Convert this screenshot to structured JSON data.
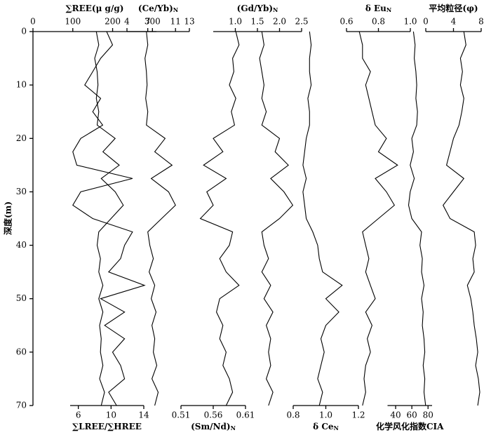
{
  "chart_data": {
    "type": "line",
    "ylabel": "深度(m)",
    "ylim": [
      0,
      70
    ],
    "yticks": [
      0,
      10,
      20,
      30,
      40,
      50,
      60,
      70
    ],
    "depth": [
      0,
      2.5,
      5,
      7.5,
      10,
      12.5,
      15,
      17.5,
      20,
      22.5,
      25,
      27.5,
      30,
      32.5,
      35,
      37.5,
      40,
      42.5,
      45,
      47.5,
      50,
      52.5,
      55,
      57.5,
      60,
      62.5,
      65,
      67.5,
      70
    ],
    "series": [
      {
        "name": "∑REE(μ g/g)",
        "axis_side": "top",
        "color": "#000000",
        "xlim": [
          0,
          310
        ],
        "xticks": [
          0,
          100,
          200,
          300
        ],
        "values": [
          185,
          200,
          170,
          150,
          130,
          170,
          150,
          175,
          120,
          100,
          110,
          250,
          120,
          100,
          150,
          250,
          230,
          220,
          190,
          280,
          170,
          230,
          180,
          230,
          200,
          220,
          230,
          190,
          210
        ]
      },
      {
        "name": "∑LREE/∑HREE",
        "axis_side": "bottom",
        "color": "#000000",
        "xlim": [
          5,
          14
        ],
        "xticks": [
          6,
          10,
          14
        ],
        "values": [
          8.2,
          8.5,
          8,
          8.3,
          8.4,
          8.2,
          8.5,
          8.3,
          10.5,
          9,
          11,
          8.8,
          10.5,
          11.5,
          10,
          8.5,
          8.3,
          8.7,
          8.5,
          9,
          8.5,
          9,
          8.6,
          8.8,
          8.7,
          9,
          8.6,
          9.2,
          8.8
        ]
      },
      {
        "name": "(Ce/Yb)",
        "name_sub": "N",
        "axis_side": "top",
        "color": "#000000",
        "xlim": [
          4,
          13
        ],
        "xticks": [
          4,
          7,
          11,
          13
        ],
        "values": [
          6.8,
          7,
          6.6,
          6.8,
          6.9,
          6.7,
          7,
          6.8,
          9.5,
          8,
          10.5,
          7.5,
          10,
          11,
          9,
          7,
          7.3,
          7.8,
          7.2,
          8,
          7.5,
          8.2,
          7.6,
          8,
          7.8,
          8.3,
          7.6,
          8.5,
          8
        ]
      },
      {
        "name": "(Sm/Nd)",
        "name_sub": "N",
        "axis_side": "bottom",
        "color": "#000000",
        "xlim": [
          0.51,
          0.61
        ],
        "xticks": [
          0.51,
          0.56,
          0.61
        ],
        "values": [
          0.595,
          0.6,
          0.59,
          0.592,
          0.585,
          0.595,
          0.588,
          0.593,
          0.56,
          0.575,
          0.545,
          0.58,
          0.55,
          0.56,
          0.54,
          0.59,
          0.585,
          0.57,
          0.58,
          0.6,
          0.57,
          0.565,
          0.575,
          0.57,
          0.58,
          0.575,
          0.585,
          0.59,
          0.58
        ]
      },
      {
        "name": "(Gd/Yb)",
        "name_sub": "N",
        "axis_side": "top",
        "color": "#000000",
        "xlim": [
          0.5,
          2.5
        ],
        "xticks": [
          {
            "value": 1,
            "label": "1.0"
          },
          1.5,
          {
            "value": 2,
            "label": "2.0"
          },
          2.5
        ],
        "values": [
          1.6,
          1.65,
          1.55,
          1.6,
          1.65,
          1.6,
          1.7,
          1.6,
          2.0,
          1.9,
          2.2,
          1.8,
          2.1,
          2.3,
          2.0,
          1.6,
          1.65,
          1.75,
          1.6,
          1.8,
          1.65,
          1.85,
          1.7,
          1.8,
          1.75,
          1.8,
          1.7,
          1.85,
          1.75
        ]
      },
      {
        "name": "δ Ce",
        "name_sub": "N",
        "axis_side": "bottom",
        "color": "#000000",
        "xlim": [
          0.8,
          1.2
        ],
        "xticks": [
          0.8,
          {
            "value": 1,
            "label": "1.0"
          },
          1.2
        ],
        "values": [
          0.9,
          0.91,
          0.9,
          0.9,
          0.91,
          0.89,
          0.9,
          0.9,
          0.88,
          0.87,
          0.86,
          0.88,
          0.86,
          0.87,
          0.88,
          0.92,
          0.95,
          0.96,
          0.98,
          1.1,
          1.0,
          1.08,
          1.0,
          0.97,
          0.99,
          0.97,
          0.95,
          0.98,
          0.96
        ]
      },
      {
        "name": "δ Eu",
        "name_sub": "N",
        "axis_side": "top",
        "color": "#000000",
        "xlim": [
          0.6,
          1.0
        ],
        "xticks": [
          0.6,
          0.8,
          {
            "value": 1,
            "label": "1.0"
          }
        ],
        "values": [
          0.68,
          0.7,
          0.7,
          0.75,
          0.72,
          0.74,
          0.76,
          0.78,
          0.85,
          0.8,
          0.92,
          0.78,
          0.85,
          0.9,
          0.8,
          0.7,
          0.72,
          0.74,
          0.72,
          0.75,
          0.78,
          0.72,
          0.76,
          0.73,
          0.75,
          0.72,
          0.71,
          0.72,
          0.7
        ]
      },
      {
        "name": "化学风化指数CIA",
        "axis_side": "bottom",
        "color": "#000000",
        "xlim": [
          30,
          85
        ],
        "xticks": [
          40,
          60,
          80
        ],
        "values": [
          62,
          64,
          63,
          65,
          66,
          65,
          67,
          66,
          60,
          62,
          58,
          63,
          58,
          56,
          60,
          72,
          70,
          73,
          72,
          75,
          72,
          74,
          73,
          75,
          76,
          74,
          76,
          75,
          77
        ]
      },
      {
        "name": "平均粒径(φ)",
        "axis_side": "top",
        "color": "#000000",
        "xlim": [
          0,
          8
        ],
        "xticks": [
          0,
          4,
          8
        ],
        "values": [
          5.5,
          5.8,
          5,
          5.3,
          5,
          5.5,
          5.2,
          4.8,
          4,
          3.5,
          3,
          5.5,
          4,
          2.5,
          3.5,
          7,
          7.2,
          6.8,
          7,
          6,
          6.5,
          6.8,
          7,
          7.3,
          7.5,
          7.2,
          7.6,
          7.8,
          7.5
        ]
      }
    ]
  }
}
